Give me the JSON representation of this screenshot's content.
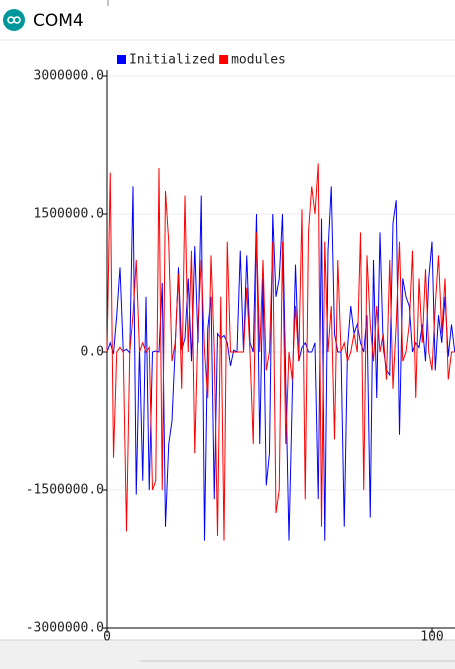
{
  "window": {
    "title": "COM4"
  },
  "chart_data": {
    "type": "line",
    "x": [
      0,
      1,
      2,
      3,
      4,
      5,
      6,
      7,
      8,
      9,
      10,
      11,
      12,
      13,
      14,
      15,
      16,
      17,
      18,
      19,
      20,
      21,
      22,
      23,
      24,
      25,
      26,
      27,
      28,
      29,
      30,
      31,
      32,
      33,
      34,
      35,
      36,
      37,
      38,
      39,
      40,
      41,
      42,
      43,
      44,
      45,
      46,
      47,
      48,
      49,
      50,
      51,
      52,
      53,
      54,
      55,
      56,
      57,
      58,
      59,
      60,
      61,
      62,
      63,
      64,
      65,
      66,
      67,
      68,
      69,
      70,
      71,
      72,
      73,
      74,
      75,
      76,
      77,
      78,
      79,
      80,
      81,
      82,
      83,
      84,
      85,
      86,
      87,
      88,
      89,
      90,
      91,
      92,
      93,
      94,
      95,
      96,
      97,
      98,
      99,
      100,
      101,
      102,
      103,
      104,
      105,
      106,
      107
    ],
    "series": [
      {
        "name": "Initialized",
        "color": "#0000ff",
        "values": [
          0,
          100000,
          -20000,
          400000,
          920000,
          10000,
          30000,
          -10000,
          1800000,
          -1550000,
          50000,
          -1400000,
          600000,
          -1500000,
          0,
          10000,
          0,
          750000,
          -1900000,
          -1000000,
          -750000,
          50000,
          920000,
          20000,
          150000,
          800000,
          -100000,
          1150000,
          100000,
          1700000,
          -2050000,
          250000,
          600000,
          -1600000,
          200000,
          150000,
          180000,
          100000,
          -150000,
          20000,
          0,
          1100000,
          0,
          1050000,
          100000,
          0,
          1500000,
          -1000000,
          800000,
          -1450000,
          -1100000,
          1500000,
          600000,
          800000,
          1500000,
          -300000,
          -2050000,
          -500000,
          950000,
          -100000,
          50000,
          100000,
          0,
          0,
          100000,
          -1600000,
          1450000,
          -2050000,
          1100000,
          1800000,
          200000,
          0,
          0,
          -1900000,
          50000,
          500000,
          200000,
          300000,
          100000,
          0,
          400000,
          -1800000,
          1000000,
          -500000,
          1300000,
          50000,
          -200000,
          -250000,
          1400000,
          1650000,
          -900000,
          800000,
          600000,
          500000,
          0,
          100000,
          50000,
          300000,
          -100000,
          800000,
          1200000,
          -200000,
          400000,
          100000,
          600000,
          -50000,
          300000,
          0
        ]
      },
      {
        "name": "modules",
        "color": "#ff0000",
        "values": [
          0,
          1950000,
          -1150000,
          0,
          50000,
          0,
          -1950000,
          0,
          400000,
          1000000,
          0,
          100000,
          0,
          50000,
          -1500000,
          -1400000,
          2000000,
          -1500000,
          1750000,
          1200000,
          -100000,
          100000,
          850000,
          -400000,
          1700000,
          0,
          1100000,
          -1100000,
          300000,
          1000000,
          0,
          -500000,
          1050000,
          0,
          -2000000,
          600000,
          -2050000,
          1200000,
          0,
          0,
          0,
          0,
          0,
          700000,
          0,
          -1000000,
          1300000,
          0,
          1000000,
          -200000,
          0,
          1200000,
          -1750000,
          -1500000,
          1200000,
          -1000000,
          0,
          -300000,
          500000,
          -100000,
          1550000,
          -1600000,
          1300000,
          1800000,
          1500000,
          2050000,
          -1900000,
          1200000,
          0,
          500000,
          -950000,
          1000000,
          0,
          100000,
          -100000,
          0,
          200000,
          0,
          1300000,
          -1500000,
          1050000,
          300000,
          -100000,
          500000,
          0,
          200000,
          -300000,
          1000000,
          -400000,
          300000,
          1200000,
          -100000,
          0,
          300000,
          1100000,
          -500000,
          800000,
          100000,
          900000,
          0,
          -200000,
          500000,
          1050000,
          200000,
          800000,
          -300000,
          0,
          0
        ]
      }
    ],
    "xlim": [
      0,
      107
    ],
    "xticks": [
      0,
      100
    ],
    "ylim": [
      -3000000,
      3000000
    ],
    "yticks": [
      {
        "value": 3000000,
        "label": "3000000.0"
      },
      {
        "value": 1500000,
        "label": "1500000.0"
      },
      {
        "value": 0,
        "label": "0.0"
      },
      {
        "value": -1500000,
        "label": "-1500000.0"
      },
      {
        "value": -3000000,
        "label": "-3000000.0"
      }
    ],
    "grid": true
  }
}
